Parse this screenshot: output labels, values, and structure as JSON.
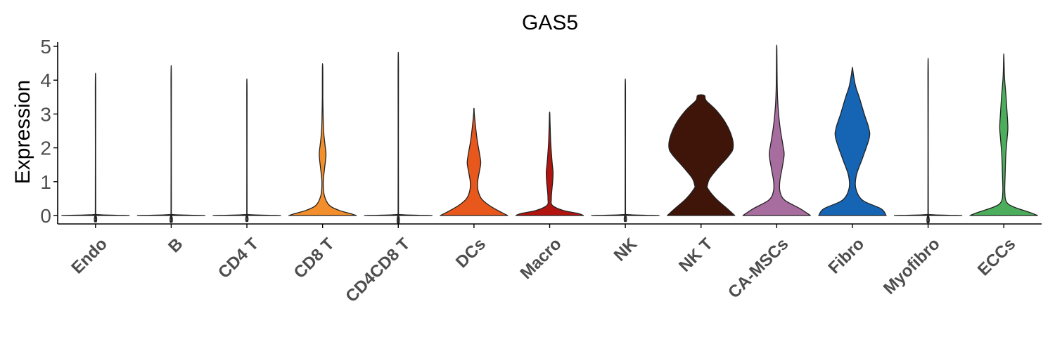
{
  "chart_data": {
    "type": "violin",
    "title": "GAS5",
    "xlabel": "",
    "ylabel": "Expression",
    "ylim": [
      0,
      5
    ],
    "yticks": [
      0,
      1,
      2,
      3,
      4,
      5
    ],
    "grid": false,
    "legend": "none",
    "categories": [
      "Endo",
      "B",
      "CD4 T",
      "CD8 T",
      "CD4CD8 T",
      "DCs",
      "Macro",
      "NK",
      "NK T",
      "CA-MSCs",
      "Fibro",
      "Myofibro",
      "ECCs"
    ],
    "series": [
      {
        "category": "Endo",
        "color": "#a6a6a6",
        "max": 3.75,
        "profile": [
          [
            0,
            1.0
          ],
          [
            0.03,
            0.05
          ],
          [
            0.1,
            0.006
          ],
          [
            3.75,
            0.006
          ]
        ]
      },
      {
        "category": "B",
        "color": "#a6a6a6",
        "max": 3.95,
        "profile": [
          [
            0,
            1.0
          ],
          [
            0.03,
            0.05
          ],
          [
            0.1,
            0.006
          ],
          [
            3.95,
            0.006
          ]
        ]
      },
      {
        "category": "CD4 T",
        "color": "#a6a6a6",
        "max": 3.6,
        "profile": [
          [
            0,
            1.0
          ],
          [
            0.03,
            0.05
          ],
          [
            0.1,
            0.006
          ],
          [
            3.6,
            0.006
          ]
        ]
      },
      {
        "category": "CD8 T",
        "color": "#f28e2b",
        "max": 4.38,
        "profile": [
          [
            0,
            1.0
          ],
          [
            0.05,
            0.85
          ],
          [
            0.15,
            0.5
          ],
          [
            0.3,
            0.2
          ],
          [
            0.6,
            0.05
          ],
          [
            1.0,
            0.02
          ],
          [
            1.4,
            0.06
          ],
          [
            1.8,
            0.1
          ],
          [
            2.1,
            0.07
          ],
          [
            2.5,
            0.03
          ],
          [
            3.0,
            0.015
          ],
          [
            3.5,
            0.008
          ],
          [
            4.38,
            0.006
          ]
        ]
      },
      {
        "category": "CD4CD8 T",
        "color": "#a6a6a6",
        "max": 4.3,
        "profile": [
          [
            0,
            1.0
          ],
          [
            0.03,
            0.05
          ],
          [
            0.1,
            0.006
          ],
          [
            4.3,
            0.006
          ]
        ]
      },
      {
        "category": "DCs",
        "color": "#e8571c",
        "max": 3.15,
        "profile": [
          [
            0,
            1.0
          ],
          [
            0.1,
            0.8
          ],
          [
            0.3,
            0.45
          ],
          [
            0.5,
            0.22
          ],
          [
            0.75,
            0.12
          ],
          [
            1.0,
            0.11
          ],
          [
            1.3,
            0.16
          ],
          [
            1.55,
            0.2
          ],
          [
            1.8,
            0.17
          ],
          [
            2.2,
            0.1
          ],
          [
            2.6,
            0.05
          ],
          [
            3.0,
            0.01
          ],
          [
            3.15,
            0.005
          ]
        ]
      },
      {
        "category": "Macro",
        "color": "#b2140f",
        "max": 3.03,
        "profile": [
          [
            0,
            1.0
          ],
          [
            0.06,
            0.85
          ],
          [
            0.15,
            0.4
          ],
          [
            0.3,
            0.08
          ],
          [
            0.5,
            0.05
          ],
          [
            0.8,
            0.07
          ],
          [
            1.0,
            0.09
          ],
          [
            1.3,
            0.1
          ],
          [
            1.6,
            0.07
          ],
          [
            2.2,
            0.03
          ],
          [
            2.8,
            0.01
          ],
          [
            3.03,
            0.005
          ]
        ]
      },
      {
        "category": "NK",
        "color": "#a6a6a6",
        "max": 3.6,
        "profile": [
          [
            0,
            1.0
          ],
          [
            0.03,
            0.05
          ],
          [
            0.1,
            0.006
          ],
          [
            3.6,
            0.006
          ]
        ]
      },
      {
        "category": "NK T",
        "color": "#3f1509",
        "max": 3.55,
        "profile": [
          [
            0,
            1.0
          ],
          [
            0.2,
            0.78
          ],
          [
            0.5,
            0.44
          ],
          [
            0.8,
            0.2
          ],
          [
            0.9,
            0.19
          ],
          [
            1.1,
            0.26
          ],
          [
            1.4,
            0.5
          ],
          [
            1.8,
            0.85
          ],
          [
            2.0,
            0.95
          ],
          [
            2.3,
            0.92
          ],
          [
            2.7,
            0.75
          ],
          [
            3.1,
            0.46
          ],
          [
            3.4,
            0.15
          ],
          [
            3.55,
            0.1
          ]
        ]
      },
      {
        "category": "CA-MSCs",
        "color": "#a86d9f",
        "max": 4.9,
        "profile": [
          [
            0,
            1.0
          ],
          [
            0.2,
            0.7
          ],
          [
            0.45,
            0.24
          ],
          [
            0.7,
            0.1
          ],
          [
            1.0,
            0.09
          ],
          [
            1.4,
            0.16
          ],
          [
            1.8,
            0.22
          ],
          [
            2.1,
            0.18
          ],
          [
            2.6,
            0.1
          ],
          [
            3.2,
            0.04
          ],
          [
            3.8,
            0.015
          ],
          [
            4.9,
            0.005
          ]
        ]
      },
      {
        "category": "Fibro",
        "color": "#1565b4",
        "max": 4.35,
        "profile": [
          [
            0,
            1.0
          ],
          [
            0.2,
            0.85
          ],
          [
            0.45,
            0.3
          ],
          [
            0.8,
            0.1
          ],
          [
            1.2,
            0.12
          ],
          [
            1.7,
            0.3
          ],
          [
            2.3,
            0.5
          ],
          [
            2.6,
            0.48
          ],
          [
            3.0,
            0.35
          ],
          [
            3.5,
            0.2
          ],
          [
            3.8,
            0.1
          ],
          [
            4.1,
            0.04
          ],
          [
            4.35,
            0.005
          ]
        ]
      },
      {
        "category": "Myofibro",
        "color": "#a6a6a6",
        "max": 4.14,
        "profile": [
          [
            0,
            1.0
          ],
          [
            0.03,
            0.05
          ],
          [
            0.1,
            0.006
          ],
          [
            4.14,
            0.006
          ]
        ]
      },
      {
        "category": "ECCs",
        "color": "#4cae5c",
        "max": 4.7,
        "profile": [
          [
            0,
            1.0
          ],
          [
            0.08,
            0.8
          ],
          [
            0.25,
            0.3
          ],
          [
            0.4,
            0.08
          ],
          [
            0.7,
            0.03
          ],
          [
            1.2,
            0.04
          ],
          [
            1.8,
            0.06
          ],
          [
            2.3,
            0.1
          ],
          [
            2.6,
            0.12
          ],
          [
            3.0,
            0.1
          ],
          [
            3.6,
            0.06
          ],
          [
            4.1,
            0.02
          ],
          [
            4.7,
            0.005
          ]
        ]
      }
    ]
  }
}
